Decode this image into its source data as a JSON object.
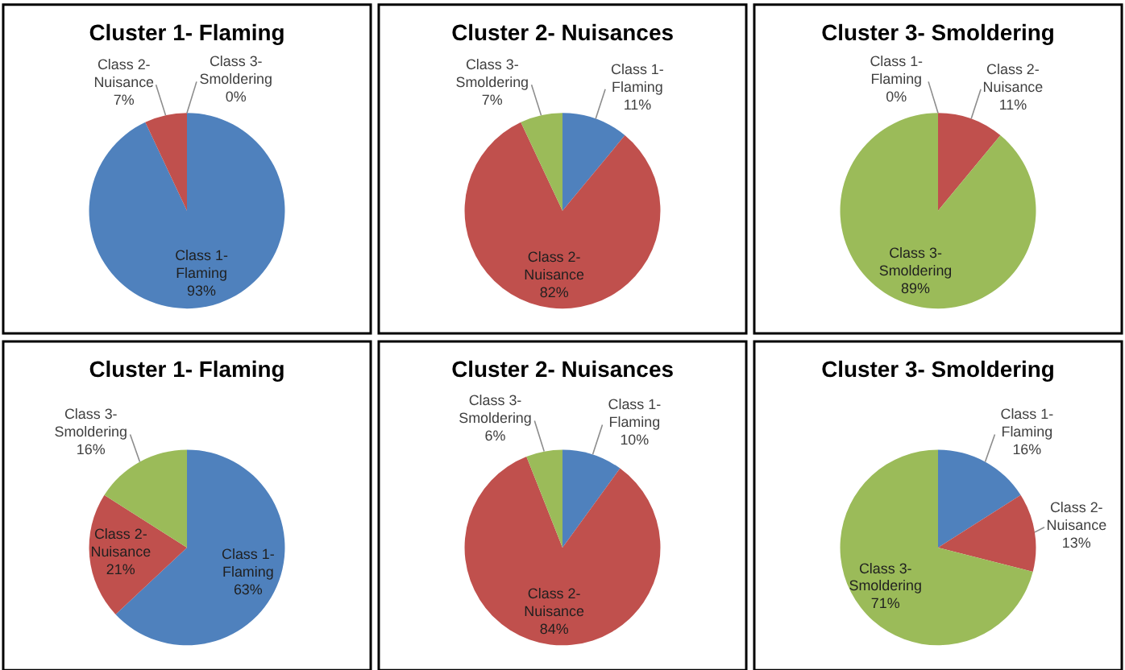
{
  "chart_data": [
    {
      "type": "pie",
      "title": "Cluster 1- Flaming",
      "categories": [
        "Class 1- Flaming",
        "Class 2- Nuisance",
        "Class 3- Smoldering"
      ],
      "values": [
        93,
        7,
        0
      ],
      "value_labels": [
        "93%",
        "7%",
        "0%"
      ],
      "colors": [
        "#4f81bd",
        "#c0504d",
        "#9bbb59"
      ]
    },
    {
      "type": "pie",
      "title": "Cluster 2- Nuisances",
      "categories": [
        "Class 1- Flaming",
        "Class 2- Nuisance",
        "Class 3- Smoldering"
      ],
      "values": [
        11,
        82,
        7
      ],
      "value_labels": [
        "11%",
        "82%",
        "7%"
      ],
      "colors": [
        "#4f81bd",
        "#c0504d",
        "#9bbb59"
      ]
    },
    {
      "type": "pie",
      "title": "Cluster 3- Smoldering",
      "categories": [
        "Class 1- Flaming",
        "Class 2- Nuisance",
        "Class 3- Smoldering"
      ],
      "values": [
        0,
        11,
        89
      ],
      "value_labels": [
        "0%",
        "11%",
        "89%"
      ],
      "colors": [
        "#4f81bd",
        "#c0504d",
        "#9bbb59"
      ]
    },
    {
      "type": "pie",
      "title": "Cluster 1- Flaming",
      "categories": [
        "Class 1- Flaming",
        "Class 2- Nuisance",
        "Class 3- Smoldering"
      ],
      "values": [
        63,
        21,
        16
      ],
      "value_labels": [
        "63%",
        "21%",
        "16%"
      ],
      "colors": [
        "#4f81bd",
        "#c0504d",
        "#9bbb59"
      ]
    },
    {
      "type": "pie",
      "title": "Cluster 2- Nuisances",
      "categories": [
        "Class 1- Flaming",
        "Class 2- Nuisance",
        "Class 3- Smoldering"
      ],
      "values": [
        10,
        84,
        6
      ],
      "value_labels": [
        "10%",
        "84%",
        "6%"
      ],
      "colors": [
        "#4f81bd",
        "#c0504d",
        "#9bbb59"
      ]
    },
    {
      "type": "pie",
      "title": "Cluster 3- Smoldering",
      "categories": [
        "Class 1- Flaming",
        "Class 2- Nuisance",
        "Class 3- Smoldering"
      ],
      "values": [
        16,
        13,
        71
      ],
      "value_labels": [
        "16%",
        "13%",
        "71%"
      ],
      "colors": [
        "#4f81bd",
        "#c0504d",
        "#9bbb59"
      ]
    }
  ]
}
